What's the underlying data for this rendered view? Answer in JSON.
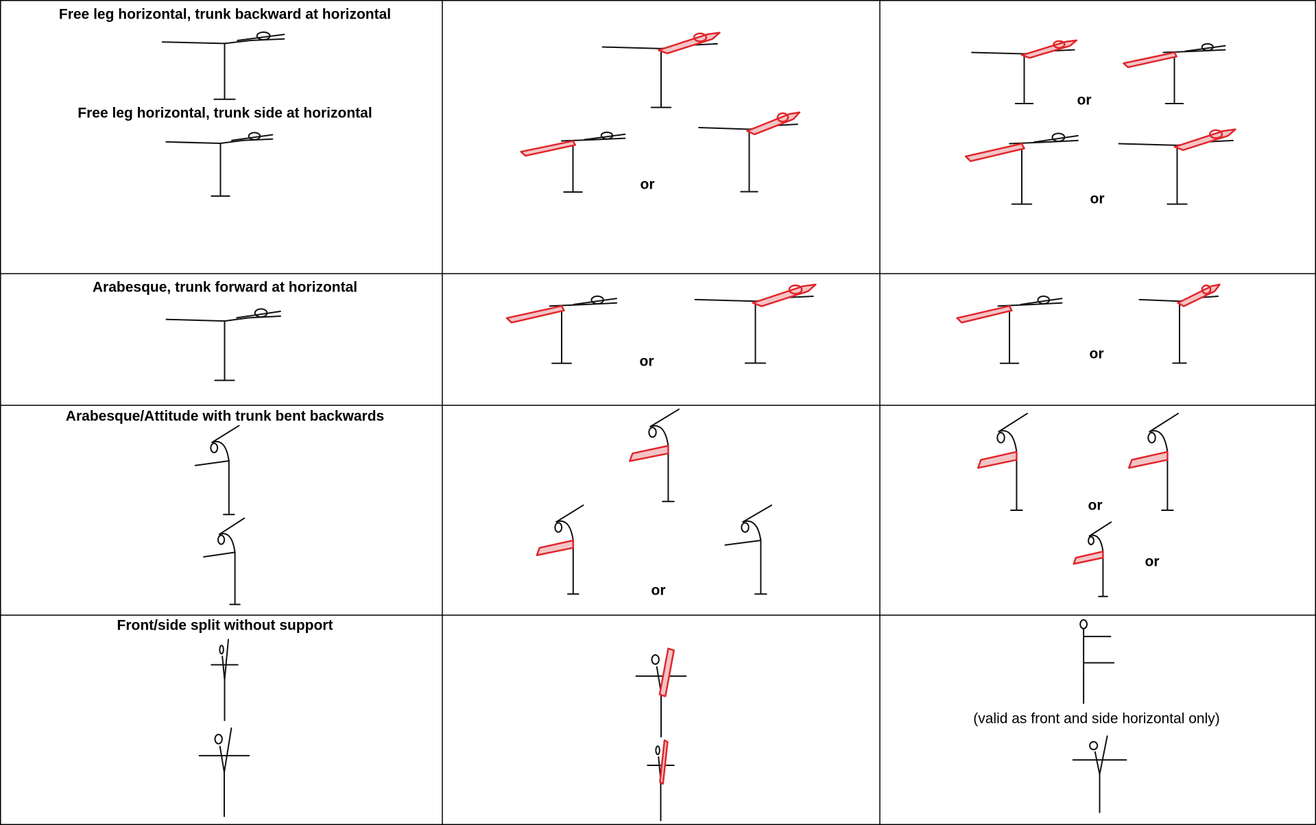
{
  "table": {
    "rows": [
      {
        "captions": [
          "Free leg horizontal, trunk backward at horizontal",
          "Free leg horizontal, trunk side at horizontal"
        ],
        "middle_labels": [
          "or"
        ],
        "right_labels": [
          "or",
          "or"
        ]
      },
      {
        "captions": [
          "Arabesque, trunk forward at horizontal"
        ],
        "middle_labels": [
          "or"
        ],
        "right_labels": [
          "or"
        ]
      },
      {
        "captions": [
          "Arabesque/Attitude with trunk bent backwards"
        ],
        "middle_labels": [
          "or"
        ],
        "right_labels": [
          "or",
          "or"
        ]
      },
      {
        "captions": [
          "Front/side split without  support"
        ],
        "right_labels": [
          "(valid as front and side horizontal only)"
        ]
      }
    ]
  }
}
